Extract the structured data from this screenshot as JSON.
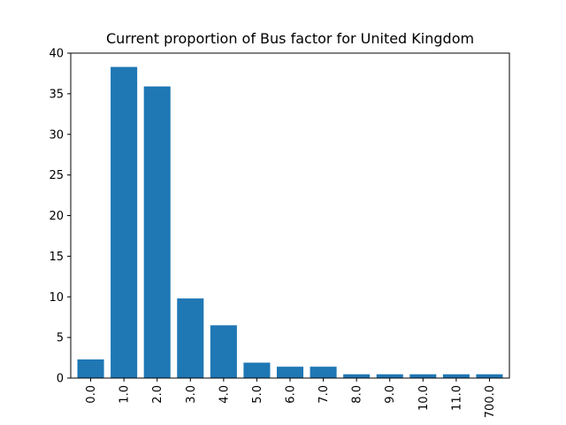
{
  "chart_data": {
    "type": "bar",
    "title": "Current proportion of Bus factor for United Kingdom",
    "xlabel": "",
    "ylabel": "",
    "categories": [
      "0.0",
      "1.0",
      "2.0",
      "3.0",
      "4.0",
      "5.0",
      "6.0",
      "7.0",
      "8.0",
      "9.0",
      "10.0",
      "11.0",
      "700.0"
    ],
    "values": [
      2.3,
      38.3,
      35.9,
      9.8,
      6.5,
      1.9,
      1.4,
      1.4,
      0.47,
      0.47,
      0.47,
      0.47,
      0.47
    ],
    "ylim": [
      0,
      40
    ],
    "yticks": [
      0,
      5,
      10,
      15,
      20,
      25,
      30,
      35,
      40
    ],
    "bar_color": "#1f77b4",
    "grid": false,
    "legend": "none"
  }
}
